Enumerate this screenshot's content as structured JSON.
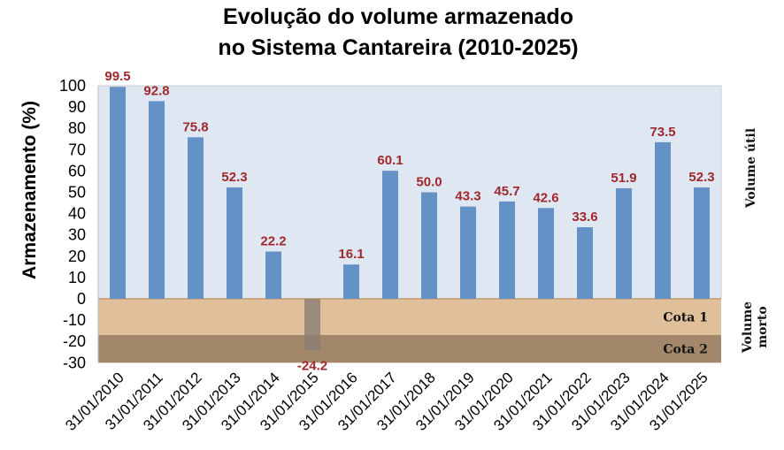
{
  "chart_data": {
    "type": "bar",
    "title_lines": [
      "Evolução do volume armazenado",
      "no Sistema Cantareira (2010-2025)"
    ],
    "ylabel": "Armazenamento (%)",
    "xlabel": "",
    "ylim": [
      -30,
      100
    ],
    "yticks": [
      100,
      90,
      80,
      70,
      60,
      50,
      40,
      30,
      20,
      10,
      0,
      -10,
      -20,
      -30
    ],
    "categories": [
      "31/01/2010",
      "31/01/2011",
      "31/01/2012",
      "31/01/2013",
      "31/01/2014",
      "31/01/2015",
      "31/01/2016",
      "31/01/2017",
      "31/01/2018",
      "31/01/2019",
      "31/01/2020",
      "31/01/2021",
      "31/01/2022",
      "31/01/2023",
      "31/01/2024",
      "31/01/2025"
    ],
    "values": [
      99.5,
      92.8,
      75.8,
      52.3,
      22.2,
      -24.2,
      16.1,
      60.1,
      50.0,
      43.3,
      45.7,
      42.6,
      33.6,
      51.9,
      73.5,
      52.3
    ],
    "data_labels": [
      "99.5",
      "92.8",
      "75.8",
      "52.3",
      "22.2",
      "-24.2",
      "16.1",
      "60.1",
      "50.0",
      "43.3",
      "45.7",
      "42.6",
      "33.6",
      "51.9",
      "73.5",
      "52.3"
    ],
    "bands": [
      {
        "label": "Cota 1",
        "from": 0,
        "to": -17,
        "color": "#dfc09b"
      },
      {
        "label": "Cota 2",
        "from": -17,
        "to": -30,
        "color": "#a3876a"
      }
    ],
    "region_labels": {
      "upper": "Volume útil",
      "lower_line1": "Volume",
      "lower_line2": "morto"
    },
    "colors": {
      "bar": "#6592c6",
      "negative_bar": "#8a7d72",
      "plot_bg": "#dfe7f2",
      "data_label": "#a0282d"
    },
    "grid": false,
    "legend": "none"
  }
}
